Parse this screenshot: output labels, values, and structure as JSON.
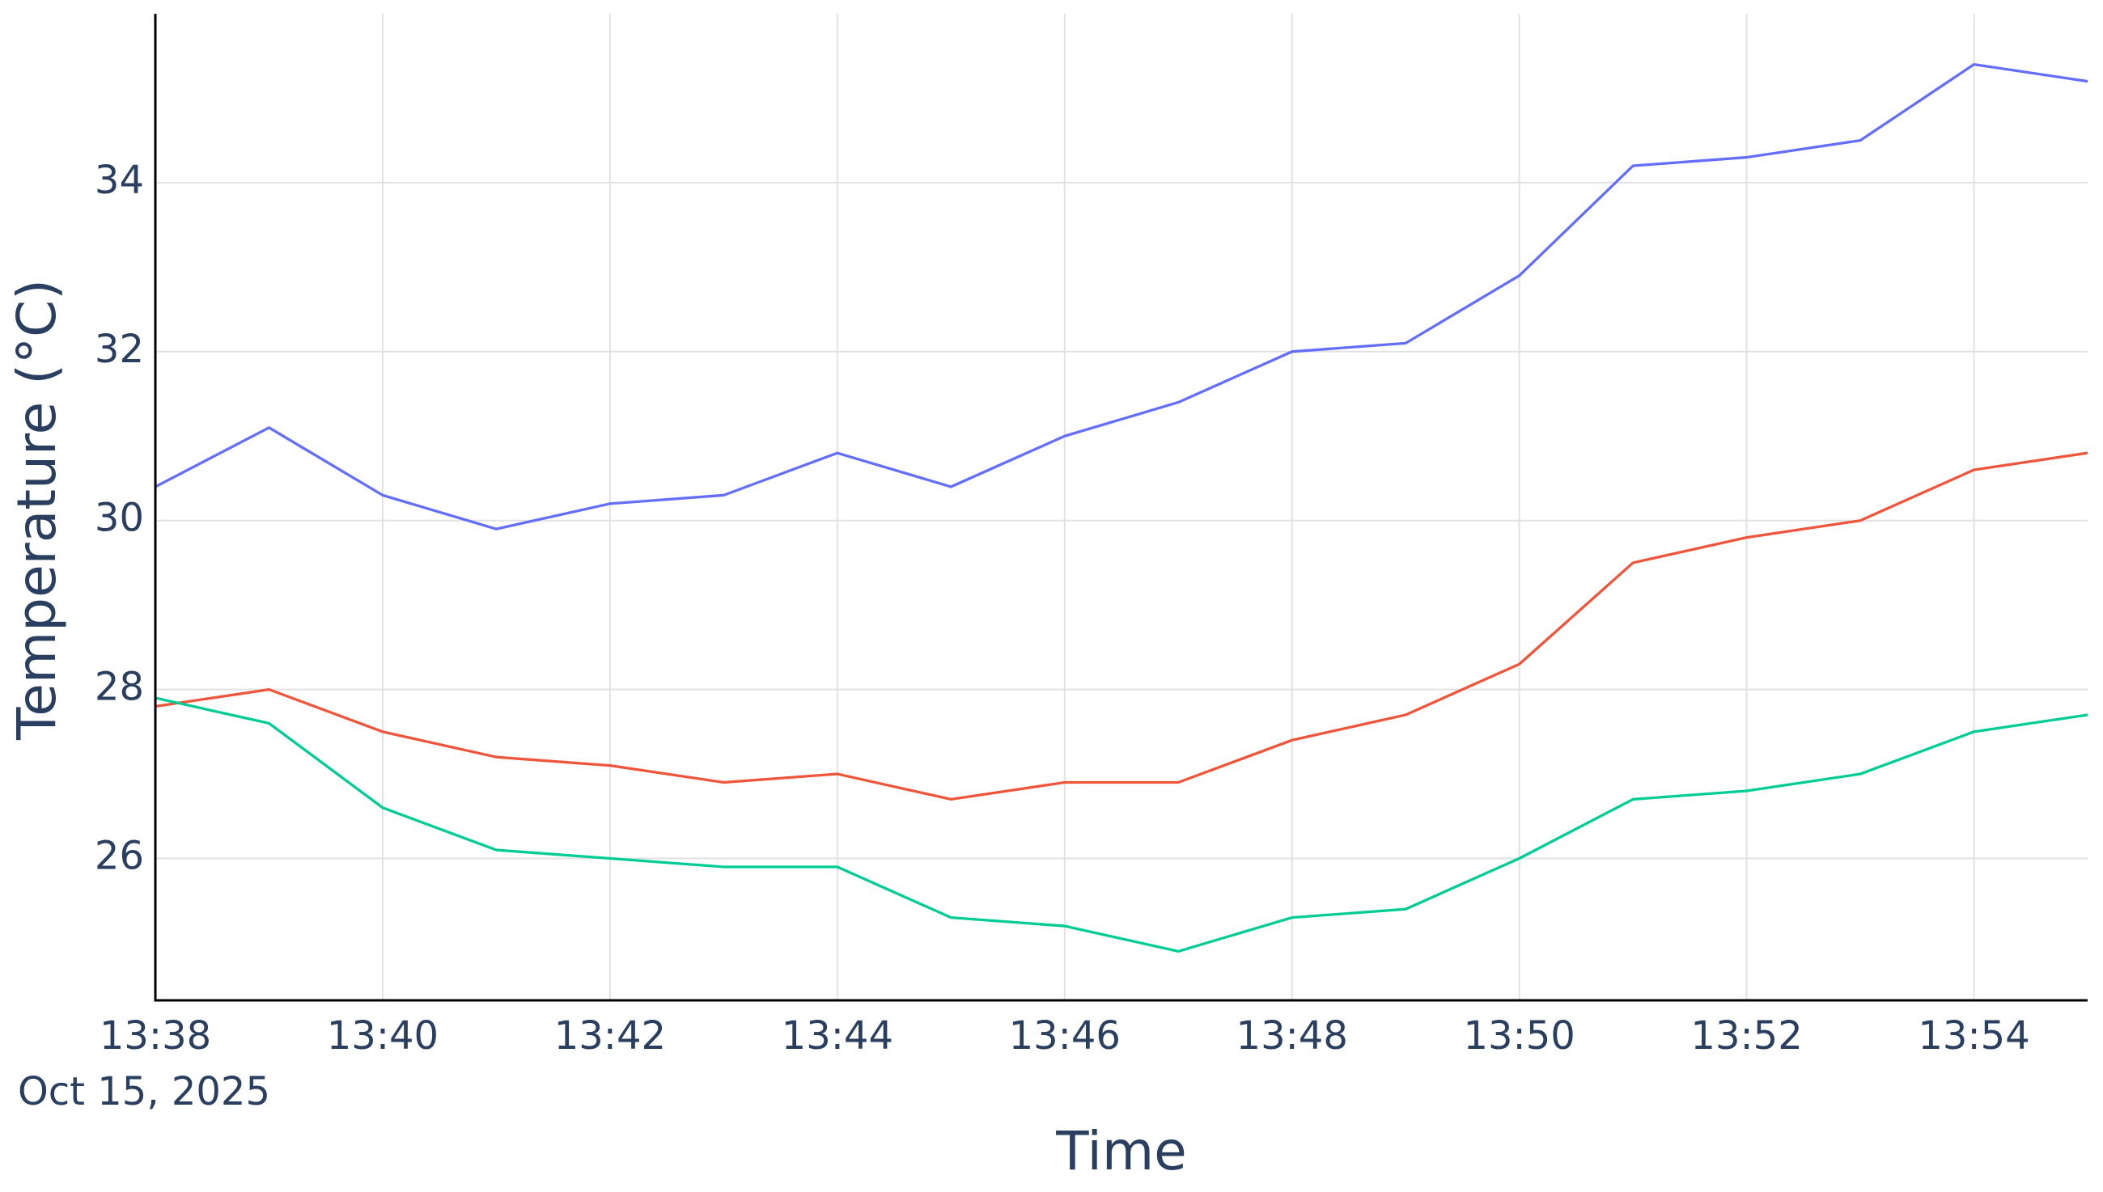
{
  "chart_data": {
    "type": "line",
    "x_title": "Time",
    "y_title": "Temperature (°C)",
    "x_date_label": "Oct 15, 2025",
    "x": [
      "13:38",
      "13:39",
      "13:40",
      "13:41",
      "13:42",
      "13:43",
      "13:44",
      "13:45",
      "13:46",
      "13:47",
      "13:48",
      "13:49",
      "13:50",
      "13:51",
      "13:52",
      "13:53",
      "13:54",
      "13:55"
    ],
    "series": [
      {
        "color": "#636efa",
        "values": [
          30.4,
          31.1,
          30.3,
          29.9,
          30.2,
          30.3,
          30.8,
          30.4,
          31.0,
          31.4,
          32.0,
          32.1,
          32.9,
          34.2,
          34.3,
          34.5,
          35.4,
          35.2
        ]
      },
      {
        "color": "#ef553b",
        "values": [
          27.8,
          28.0,
          27.5,
          27.2,
          27.1,
          26.9,
          27.0,
          26.7,
          26.9,
          26.9,
          27.4,
          27.7,
          28.3,
          29.5,
          29.8,
          30.0,
          30.6,
          30.8
        ]
      },
      {
        "color": "#00cc96",
        "values": [
          27.9,
          27.6,
          26.6,
          26.1,
          26.0,
          25.9,
          25.9,
          25.3,
          25.2,
          24.9,
          25.3,
          25.4,
          26.0,
          26.7,
          26.8,
          27.0,
          27.5,
          27.7
        ]
      }
    ],
    "xlim": [
      "13:38",
      "13:55"
    ],
    "xticks": [
      "13:38",
      "13:40",
      "13:42",
      "13:44",
      "13:46",
      "13:48",
      "13:50",
      "13:52",
      "13:54"
    ],
    "ylim": [
      24.32,
      36
    ],
    "yticks": [
      26,
      28,
      30,
      32,
      34
    ],
    "grid": true
  }
}
